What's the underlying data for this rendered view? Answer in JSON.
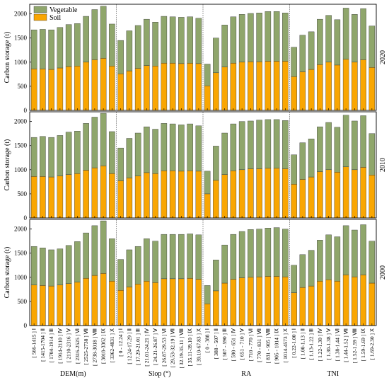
{
  "chart_data": {
    "type": "stacked-bar",
    "ylabel": "Carbon storage (t)",
    "ylim": [
      0,
      2200
    ],
    "yticks": [
      0,
      500,
      1000,
      1500,
      2000
    ],
    "rows": [
      "2020",
      "2010",
      "2000"
    ],
    "legend": "upper left",
    "groups": [
      {
        "label": "DEM(m)",
        "categories": [
          "[ 566-1415 ] Ⅰ",
          "[ 1415-1704 ] Ⅱ",
          "[ 1704-1914 ] Ⅲ",
          "[ 1914-2110 ] Ⅳ",
          "[ 2110-2316 ] Ⅴ",
          "[ 2316-2525 ] Ⅵ",
          "[ 2525-2738 ] Ⅶ",
          "[ 2738-3018 ] Ⅷ",
          "[ 3018-3362 ] Ⅸ",
          "[ 3362-4831 ] Ⅹ"
        ]
      },
      {
        "label": "Slop (°)",
        "categories": [
          "[ 0 - 12.24 ] Ⅰ",
          "[ 12.24-17.29 ] Ⅱ",
          "[ 17.29-21.01 ] Ⅲ",
          "[ 21.01-24.21 ] Ⅳ",
          "[ 24.21-26.87 ] Ⅴ",
          "[ 26.87-29.53 ] Ⅵ",
          "[ 29.53-32.19 ] Ⅶ",
          "[ 32.19-35.11 ] Ⅷ",
          "[ 35.11-39.10 ] Ⅸ",
          "[ 39.10-67.83 ] Ⅹ"
        ]
      },
      {
        "label": "RA",
        "categories": [
          "[ 0 - 388 ] Ⅰ",
          "[ 388 - 507 ] Ⅱ",
          "[ 507 - 590 ] Ⅲ",
          "[ 590 - 651 ] Ⅳ",
          "[ 651 - 710 ] Ⅴ",
          "[ 710 - 770 ] Ⅵ",
          "[ 770 - 831 ] Ⅶ",
          "[ 831 - 905 ] Ⅷ",
          "[ 905 - 1014 ] Ⅸ",
          "[ 1014-4573 ] Ⅹ"
        ]
      },
      {
        "label": "TNI",
        "categories": [
          "[ 0.22-1.00 ] Ⅰ",
          "[ 1.00-1.13 ] Ⅱ",
          "[ 1.13-1.22 ] Ⅲ",
          "[ 1.22-1.30 ] Ⅳ",
          "[ 1.30-1.38 ] Ⅴ",
          "[ 1.38-1.44 ] Ⅵ",
          "[ 1.44-1.52 ] Ⅶ",
          "[ 1.52-1.59 ] Ⅷ",
          "[ 1.59-1.69 ] Ⅸ",
          "[ 1.69-2.30 ] Ⅹ"
        ]
      }
    ],
    "series": [
      {
        "name": "Soil",
        "color": "#f9a602",
        "values": [
          [
            [
              860,
              860,
              850,
              880,
              910,
              920,
              1000,
              1050,
              1080,
              920
            ],
            [
              760,
              820,
              870,
              930,
              920,
              980,
              980,
              970,
              980,
              970
            ],
            [
              510,
              780,
              900,
              980,
              1000,
              1010,
              1010,
              1020,
              1020,
              1020
            ],
            [
              700,
              800,
              850,
              950,
              1000,
              940,
              1060,
              1000,
              1050,
              890
            ]
          ],
          [
            [
              860,
              860,
              850,
              870,
              900,
              920,
              990,
              1040,
              1080,
              920
            ],
            [
              770,
              830,
              870,
              940,
              920,
              980,
              980,
              970,
              980,
              970
            ],
            [
              500,
              780,
              900,
              980,
              1000,
              1020,
              1020,
              1030,
              1030,
              1020
            ],
            [
              700,
              800,
              850,
              960,
              1000,
              950,
              1060,
              1000,
              1050,
              890
            ]
          ],
          [
            [
              840,
              830,
              820,
              840,
              870,
              900,
              980,
              1040,
              1080,
              920
            ],
            [
              730,
              800,
              860,
              920,
              890,
              970,
              970,
              970,
              980,
              960
            ],
            [
              450,
              720,
              880,
              960,
              990,
              1000,
              1010,
              1020,
              1020,
              1010
            ],
            [
              680,
              790,
              820,
              920,
              950,
              920,
              1050,
              1010,
              1050,
              880
            ]
          ]
        ]
      },
      {
        "name": "Vegetable",
        "color": "#8fa66b",
        "values": [
          [
            [
              810,
              820,
              820,
              840,
              870,
              880,
              950,
              1040,
              1080,
              870
            ],
            [
              690,
              830,
              890,
              960,
              910,
              970,
              960,
              960,
              960,
              940
            ],
            [
              450,
              720,
              870,
              960,
              990,
              1000,
              1010,
              1030,
              1030,
              1000
            ],
            [
              610,
              760,
              780,
              940,
              970,
              940,
              1060,
              990,
              1060,
              860
            ]
          ],
          [
            [
              810,
              830,
              820,
              840,
              880,
              880,
              970,
              1050,
              1090,
              870
            ],
            [
              680,
              820,
              890,
              950,
              920,
              980,
              970,
              960,
              970,
              940
            ],
            [
              470,
              710,
              860,
              970,
              1000,
              990,
              1010,
              1010,
              1010,
              1000
            ],
            [
              610,
              760,
              790,
              930,
              980,
              930,
              1070,
              1010,
              1070,
              860
            ]
          ],
          [
            [
              800,
              780,
              750,
              750,
              790,
              840,
              940,
              1030,
              1090,
              880
            ],
            [
              640,
              770,
              780,
              880,
              860,
              920,
              920,
              920,
              920,
              920
            ],
            [
              380,
              640,
              790,
              930,
              960,
              990,
              990,
              1000,
              1010,
              990
            ],
            [
              570,
              680,
              740,
              850,
              930,
              920,
              1020,
              970,
              1040,
              870
            ]
          ]
        ]
      }
    ]
  }
}
